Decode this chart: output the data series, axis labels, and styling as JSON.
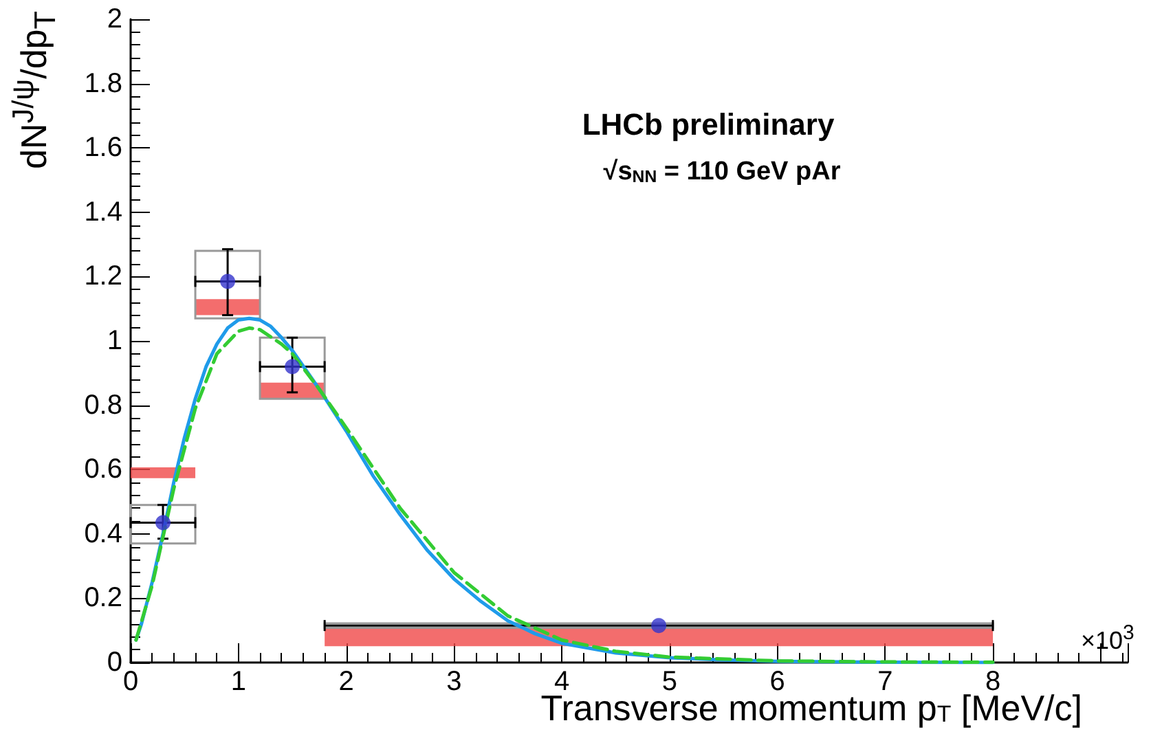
{
  "chart_data": {
    "type": "scatter",
    "xlabel": "Transverse momentum p$_{T}$ [MeV/c]",
    "ylabel": "dN$^{J/ψ}$/dp$_{T}$",
    "annotations": [
      "LHCb preliminary",
      "√s$_{NN}$ = 110 GeV pAr",
      "×10$^{3}$"
    ],
    "xlim": [
      0,
      9.25
    ],
    "xticks": [
      0,
      1,
      2,
      3,
      4,
      5,
      6,
      7,
      8
    ],
    "ylim": [
      0,
      2
    ],
    "yticks": [
      0,
      0.2,
      0.4,
      0.6,
      0.8,
      1,
      1.2,
      1.4,
      1.6,
      1.8,
      2
    ],
    "grid": false,
    "series": [
      {
        "type": "histogram",
        "color": "#f04848",
        "bins": [
          0,
          0.6,
          1.2,
          1.8,
          8
        ],
        "base": [
          0.573,
          1.08,
          0.82,
          0.051
        ],
        "values": [
          0.034,
          0.05,
          0.05,
          0.056
        ]
      },
      {
        "type": "histogram",
        "color": "#999999",
        "bins": [
          0,
          0.6,
          1.2,
          1.8,
          8
        ],
        "base": [
          0.37,
          1.07,
          0.82,
          0.108
        ],
        "values": [
          0.12,
          0.21,
          0.19,
          0.014
        ]
      },
      {
        "marker": "circle",
        "color": "#3333cc",
        "x": [
          0.3,
          0.9,
          1.5,
          4.9
        ],
        "values": [
          0.435,
          1.185,
          0.92,
          0.115
        ],
        "errors": [
          [
            0.385,
            0.49
          ],
          [
            1.08,
            1.285
          ],
          [
            0.84,
            1.01
          ],
          null
        ],
        "xerrors": [
          0.3,
          0.3,
          0.3,
          [
            1.8,
            8
          ]
        ]
      },
      {
        "type": "line",
        "color": "#1f9bea",
        "line_style": "solid",
        "x": [
          0.05,
          0.1,
          0.2,
          0.3,
          0.4,
          0.5,
          0.6,
          0.7,
          0.8,
          0.9,
          1.0,
          1.1,
          1.2,
          1.3,
          1.4,
          1.5,
          1.75,
          2.0,
          2.25,
          2.5,
          2.75,
          3.0,
          3.25,
          3.5,
          3.75,
          4.0,
          4.5,
          5.0,
          5.5,
          6,
          7,
          8
        ],
        "values": [
          0.07,
          0.12,
          0.25,
          0.4,
          0.56,
          0.7,
          0.82,
          0.92,
          0.99,
          1.04,
          1.065,
          1.07,
          1.065,
          1.045,
          1.01,
          0.97,
          0.85,
          0.72,
          0.58,
          0.46,
          0.35,
          0.26,
          0.19,
          0.13,
          0.09,
          0.06,
          0.03,
          0.015,
          0.008,
          0.004,
          0.001,
          0
        ]
      },
      {
        "type": "line",
        "color": "#33cc33",
        "line_style": "dashed",
        "x": [
          0.05,
          0.2,
          0.4,
          0.6,
          0.8,
          1.0,
          1.1,
          1.2,
          1.4,
          1.5,
          1.75,
          2.0,
          2.5,
          3.0,
          3.5,
          4.0,
          4.5,
          5.0,
          6,
          7,
          8
        ],
        "values": [
          0.07,
          0.24,
          0.54,
          0.79,
          0.96,
          1.03,
          1.04,
          1.035,
          0.99,
          0.96,
          0.85,
          0.73,
          0.48,
          0.28,
          0.145,
          0.07,
          0.035,
          0.017,
          0.005,
          0.002,
          0.001
        ]
      }
    ]
  }
}
